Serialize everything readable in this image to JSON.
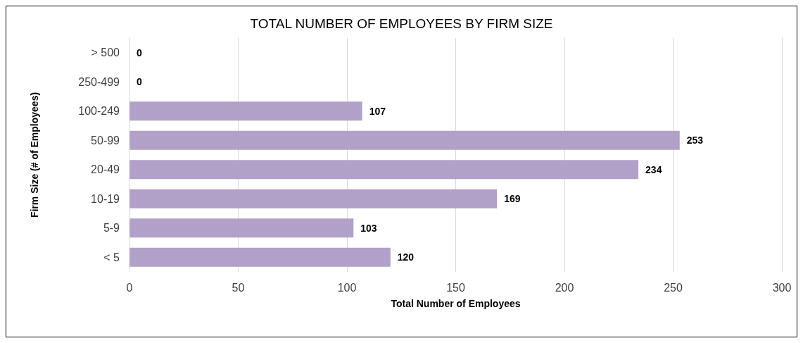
{
  "chart_data": {
    "type": "bar",
    "orientation": "horizontal",
    "title": "TOTAL NUMBER OF EMPLOYEES BY FIRM SIZE",
    "xlabel": "Total Number of Employees",
    "ylabel": "Firm Size (# of Employees)",
    "categories": [
      "> 500",
      "250-499",
      "100-249",
      "50-99",
      "20-49",
      "10-19",
      "5-9",
      "< 5"
    ],
    "values": [
      0,
      0,
      107,
      253,
      234,
      169,
      103,
      120
    ],
    "color": "#b1a0c7",
    "xlim": [
      0,
      300
    ],
    "xticks": [
      0,
      50,
      100,
      150,
      200,
      250,
      300
    ],
    "grid": "x",
    "data_labels": true
  }
}
